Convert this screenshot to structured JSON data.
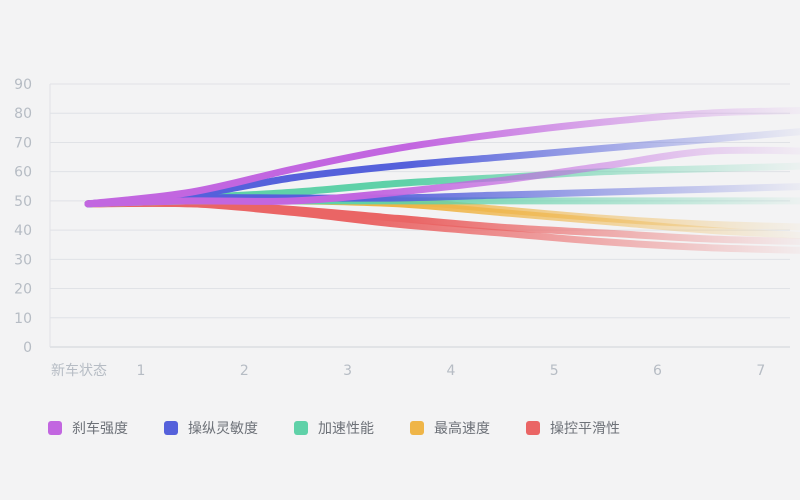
{
  "chart_data": {
    "type": "line",
    "categories": [
      "新车状态",
      "1",
      "2",
      "3",
      "4",
      "5",
      "6",
      "7"
    ],
    "ylim": [
      0,
      90
    ],
    "yticks": [
      0,
      10,
      20,
      30,
      40,
      50,
      60,
      70,
      80,
      90
    ],
    "grid": true,
    "legend_position": "bottom-left",
    "series": [
      {
        "name": "刹车强度",
        "color": "#c266e0",
        "values": [
          49,
          53,
          61,
          68,
          73,
          77,
          80,
          81
        ],
        "secondary": [
          49,
          50,
          50,
          53,
          57,
          62,
          67,
          67
        ]
      },
      {
        "name": "操纵灵敏度",
        "color": "#5561db",
        "values": [
          49,
          52,
          58,
          62,
          65,
          68,
          71,
          74
        ],
        "secondary": [
          49,
          51,
          51,
          51,
          52,
          53,
          54,
          55
        ]
      },
      {
        "name": "加速性能",
        "color": "#5fd1a8",
        "values": [
          49,
          51,
          53,
          56,
          58,
          60,
          61,
          62
        ],
        "secondary": [
          49,
          50,
          50,
          50,
          50,
          50,
          50,
          50
        ]
      },
      {
        "name": "最高速度",
        "color": "#efb548",
        "values": [
          49,
          50,
          50,
          49,
          46,
          43,
          40,
          38
        ],
        "secondary": [
          49,
          50,
          50,
          50,
          47,
          44,
          42,
          41
        ]
      },
      {
        "name": "操控平滑性",
        "color": "#ea6565",
        "values": [
          49,
          49,
          47,
          44,
          41,
          39,
          37,
          36
        ],
        "secondary": [
          49,
          49,
          46,
          42,
          39,
          36,
          34,
          33
        ]
      }
    ]
  }
}
